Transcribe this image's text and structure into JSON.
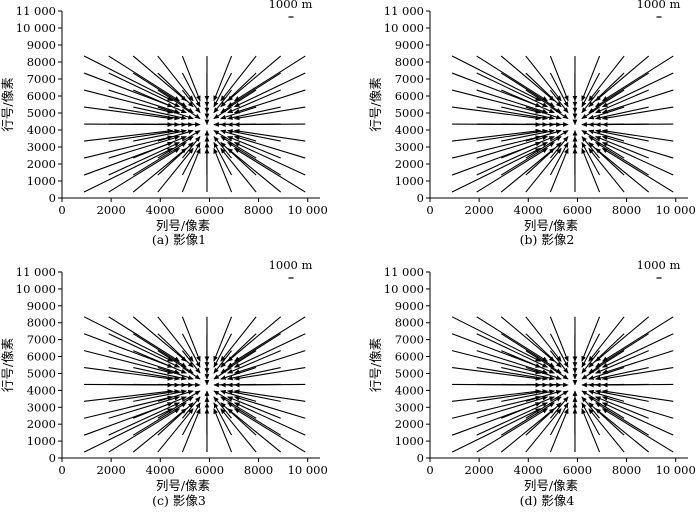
{
  "chart_data": [
    {
      "type": "quiver",
      "caption": "(a) 影像1",
      "xlabel": "列号/像素",
      "ylabel": "行号/像素",
      "scale_label": "1000 m",
      "xlim": [
        0,
        10500
      ],
      "ylim": [
        0,
        11000
      ],
      "xticks": [
        {
          "value": 0,
          "label": "0"
        },
        {
          "value": 2000,
          "label": "2000"
        },
        {
          "value": 4000,
          "label": "4000"
        },
        {
          "value": 6000,
          "label": "6000"
        },
        {
          "value": 8000,
          "label": "8000"
        },
        {
          "value": 10000,
          "label": "10 000"
        }
      ],
      "yticks": [
        {
          "value": 0,
          "label": "0"
        },
        {
          "value": 1000,
          "label": "1000"
        },
        {
          "value": 2000,
          "label": "2000"
        },
        {
          "value": 3000,
          "label": "3000"
        },
        {
          "value": 4000,
          "label": "4000"
        },
        {
          "value": 5000,
          "label": "5000"
        },
        {
          "value": 6000,
          "label": "6000"
        },
        {
          "value": 7000,
          "label": "7000"
        },
        {
          "value": 8000,
          "label": "8000"
        },
        {
          "value": 9000,
          "label": "9000"
        },
        {
          "value": 10000,
          "label": "10 000"
        },
        {
          "value": 11000,
          "label": "11 000"
        }
      ],
      "field": {
        "x_start": 900,
        "x_step": 1000,
        "x_count": 10,
        "y_start": 350,
        "y_step": 1000,
        "y_count": 9,
        "center": [
          5900,
          4300
        ],
        "gain_x": -0.72,
        "gain_y": -0.65
      }
    },
    {
      "type": "quiver",
      "caption": "(b) 影像2",
      "xlabel": "列号/像素",
      "ylabel": "行号/像素",
      "scale_label": "1000 m",
      "xlim": [
        0,
        10500
      ],
      "ylim": [
        0,
        11000
      ],
      "xticks": [
        {
          "value": 0,
          "label": "0"
        },
        {
          "value": 2000,
          "label": "2000"
        },
        {
          "value": 4000,
          "label": "4000"
        },
        {
          "value": 6000,
          "label": "6000"
        },
        {
          "value": 8000,
          "label": "8000"
        },
        {
          "value": 10000,
          "label": "10 000"
        }
      ],
      "yticks": [
        {
          "value": 0,
          "label": "0"
        },
        {
          "value": 1000,
          "label": "1000"
        },
        {
          "value": 2000,
          "label": "2000"
        },
        {
          "value": 3000,
          "label": "3000"
        },
        {
          "value": 4000,
          "label": "4000"
        },
        {
          "value": 5000,
          "label": "5000"
        },
        {
          "value": 6000,
          "label": "6000"
        },
        {
          "value": 7000,
          "label": "7000"
        },
        {
          "value": 8000,
          "label": "8000"
        },
        {
          "value": 9000,
          "label": "9000"
        },
        {
          "value": 10000,
          "label": "10 000"
        },
        {
          "value": 11000,
          "label": "11 000"
        }
      ],
      "field": {
        "x_start": 900,
        "x_step": 1000,
        "x_count": 10,
        "y_start": 350,
        "y_step": 1000,
        "y_count": 9,
        "center": [
          5900,
          4300
        ],
        "gain_x": -0.72,
        "gain_y": -0.65
      }
    },
    {
      "type": "quiver",
      "caption": "(c) 影像3",
      "xlabel": "列号/像素",
      "ylabel": "行号/像素",
      "scale_label": "1000 m",
      "xlim": [
        0,
        10500
      ],
      "ylim": [
        0,
        11000
      ],
      "xticks": [
        {
          "value": 0,
          "label": "0"
        },
        {
          "value": 2000,
          "label": "2000"
        },
        {
          "value": 4000,
          "label": "4000"
        },
        {
          "value": 6000,
          "label": "6000"
        },
        {
          "value": 8000,
          "label": "8000"
        },
        {
          "value": 10000,
          "label": "10 000"
        }
      ],
      "yticks": [
        {
          "value": 0,
          "label": "0"
        },
        {
          "value": 1000,
          "label": "1000"
        },
        {
          "value": 2000,
          "label": "2000"
        },
        {
          "value": 3000,
          "label": "3000"
        },
        {
          "value": 4000,
          "label": "4000"
        },
        {
          "value": 5000,
          "label": "5000"
        },
        {
          "value": 6000,
          "label": "6000"
        },
        {
          "value": 7000,
          "label": "7000"
        },
        {
          "value": 8000,
          "label": "8000"
        },
        {
          "value": 9000,
          "label": "9000"
        },
        {
          "value": 10000,
          "label": "10 000"
        },
        {
          "value": 11000,
          "label": "11 000"
        }
      ],
      "field": {
        "x_start": 900,
        "x_step": 1000,
        "x_count": 10,
        "y_start": 350,
        "y_step": 1000,
        "y_count": 9,
        "center": [
          5900,
          4300
        ],
        "gain_x": -0.72,
        "gain_y": -0.65
      }
    },
    {
      "type": "quiver",
      "caption": "(d) 影像4",
      "xlabel": "列号/像素",
      "ylabel": "行号/像素",
      "scale_label": "1000 m",
      "xlim": [
        0,
        10500
      ],
      "ylim": [
        0,
        11000
      ],
      "xticks": [
        {
          "value": 0,
          "label": "0"
        },
        {
          "value": 2000,
          "label": "2000"
        },
        {
          "value": 4000,
          "label": "4000"
        },
        {
          "value": 6000,
          "label": "6000"
        },
        {
          "value": 8000,
          "label": "8000"
        },
        {
          "value": 10000,
          "label": "10 000"
        }
      ],
      "yticks": [
        {
          "value": 0,
          "label": "0"
        },
        {
          "value": 1000,
          "label": "1000"
        },
        {
          "value": 2000,
          "label": "2000"
        },
        {
          "value": 3000,
          "label": "3000"
        },
        {
          "value": 4000,
          "label": "4000"
        },
        {
          "value": 5000,
          "label": "5000"
        },
        {
          "value": 6000,
          "label": "6000"
        },
        {
          "value": 7000,
          "label": "7000"
        },
        {
          "value": 8000,
          "label": "8000"
        },
        {
          "value": 9000,
          "label": "9000"
        },
        {
          "value": 10000,
          "label": "10 000"
        },
        {
          "value": 11000,
          "label": "11 000"
        }
      ],
      "field": {
        "x_start": 900,
        "x_step": 1000,
        "x_count": 10,
        "y_start": 350,
        "y_step": 1000,
        "y_count": 9,
        "center": [
          5900,
          4300
        ],
        "gain_x": -0.72,
        "gain_y": -0.65
      }
    }
  ]
}
